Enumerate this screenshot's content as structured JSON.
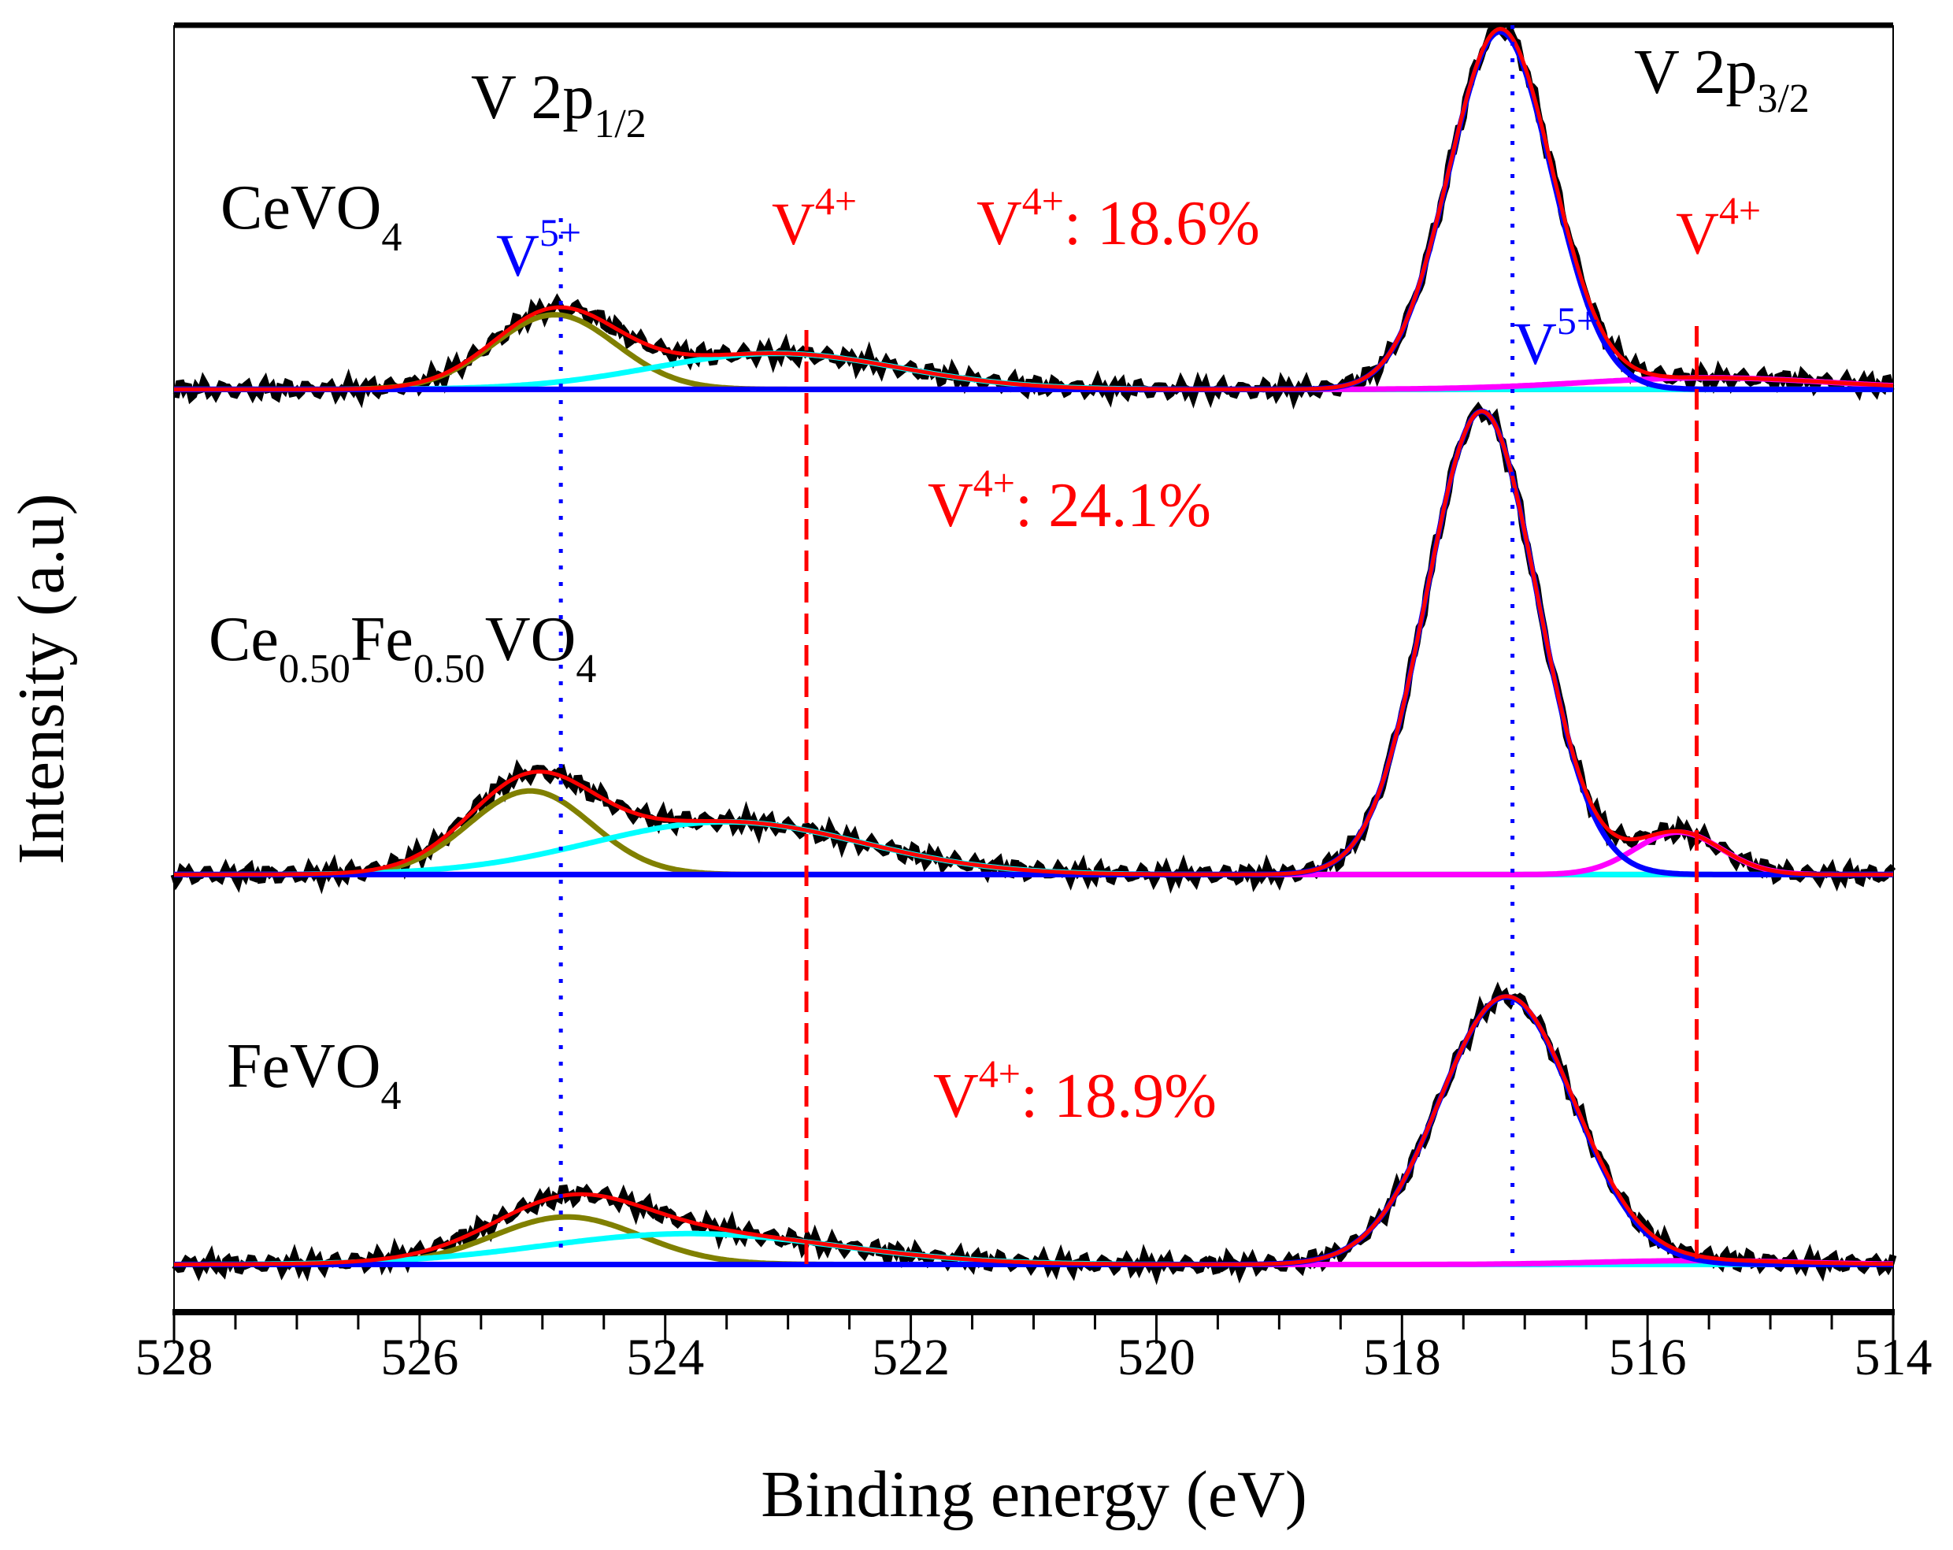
{
  "chart_data": {
    "type": "line",
    "title": "",
    "xlabel": "Binding energy (eV)",
    "ylabel": "Intensity (a.u)",
    "xlim": [
      528,
      514
    ],
    "x_ticks": [
      "528",
      "526",
      "524",
      "522",
      "520",
      "518",
      "516",
      "514"
    ],
    "x_tick_values": [
      528,
      526,
      524,
      522,
      520,
      518,
      516,
      514
    ],
    "ylim": [
      0,
      100
    ],
    "colors": {
      "raw": "#000000",
      "fit": "#ff0000",
      "v5_2p3": "#0000ff",
      "v4_2p3": "#ff00ff",
      "v5_2p1": "#808000",
      "v4_2p1": "#00ffff",
      "ref_v5": "#0000ff",
      "ref_v4": "#ff0000"
    },
    "peak_labels": {
      "v2p12": {
        "main": "V 2p",
        "sub": "1/2"
      },
      "v2p32": {
        "main": "V 2p",
        "sub": "3/2"
      }
    },
    "reference_lines": [
      {
        "name": "V5+ 2p1/2",
        "energy": 524.85,
        "style": "dotted",
        "color": "#0000ff"
      },
      {
        "name": "V4+ 2p1/2",
        "energy": 522.85,
        "style": "dashed",
        "color": "#ff0000"
      },
      {
        "name": "V5+ 2p3/2",
        "energy": 517.1,
        "style": "dotted",
        "color": "#0000ff"
      },
      {
        "name": "V4+ 2p3/2",
        "energy": 515.6,
        "style": "dashed",
        "color": "#ff0000"
      }
    ],
    "ion_labels": {
      "v5_left": {
        "main": "V",
        "sup": "5+"
      },
      "v4_left": {
        "main": "V",
        "sup": "4+"
      },
      "v5_right": {
        "main": "V",
        "sup": "5+"
      },
      "v4_right": {
        "main": "V",
        "sup": "4+"
      }
    },
    "series": [
      {
        "name": "CeVO4",
        "label": {
          "parts": [
            "CeVO",
            "4"
          ]
        },
        "v4_fraction_label": {
          "main": "V",
          "sup": "4+",
          "rest": ": 18.6%"
        },
        "v4_fraction": 18.6,
        "offset": 71.7,
        "components": [
          {
            "name": "V5+ 2p3/2",
            "center": 517.2,
            "amplitude": 27.8,
            "sigma": 0.42,
            "color": "#0000ff"
          },
          {
            "name": "V4+ 2p3/2",
            "center": 515.5,
            "amplitude": 0.9,
            "sigma": 1.0,
            "color": "#ff00ff"
          },
          {
            "name": "V5+ 2p1/2",
            "center": 524.9,
            "amplitude": 5.8,
            "sigma": 0.5,
            "color": "#808000"
          },
          {
            "name": "V4+ 2p1/2",
            "center": 523.1,
            "amplitude": 2.8,
            "sigma": 1.0,
            "color": "#00ffff"
          }
        ]
      },
      {
        "name": "Ce0.50Fe0.50VO4",
        "label": {
          "parts": [
            "Ce",
            "0.50",
            "Fe",
            "0.50",
            "VO",
            "4"
          ]
        },
        "v4_fraction_label": {
          "main": "V",
          "sup": "4+",
          "rest": ": 24.1%"
        },
        "v4_fraction": 24.1,
        "offset": 34.0,
        "components": [
          {
            "name": "V5+ 2p3/2",
            "center": 517.35,
            "amplitude": 36.0,
            "sigma": 0.45,
            "color": "#0000ff"
          },
          {
            "name": "V4+ 2p3/2",
            "center": 515.75,
            "amplitude": 3.3,
            "sigma": 0.35,
            "color": "#ff00ff"
          },
          {
            "name": "V5+ 2p1/2",
            "center": 525.1,
            "amplitude": 6.5,
            "sigma": 0.5,
            "color": "#808000"
          },
          {
            "name": "V4+ 2p1/2",
            "center": 523.5,
            "amplitude": 4.1,
            "sigma": 1.1,
            "color": "#00ffff"
          }
        ]
      },
      {
        "name": "FeVO4",
        "label": {
          "parts": [
            "FeVO",
            "4"
          ]
        },
        "v4_fraction_label": {
          "main": "V",
          "sup": "4+",
          "rest": ": 18.9%"
        },
        "v4_fraction": 18.9,
        "offset": 3.7,
        "components": [
          {
            "name": "V5+ 2p3/2",
            "center": 517.15,
            "amplitude": 20.8,
            "sigma": 0.55,
            "color": "#0000ff"
          },
          {
            "name": "V4+ 2p3/2",
            "center": 515.6,
            "amplitude": 0.3,
            "sigma": 0.8,
            "color": "#ff00ff"
          },
          {
            "name": "V5+ 2p1/2",
            "center": 524.8,
            "amplitude": 3.7,
            "sigma": 0.6,
            "color": "#808000"
          },
          {
            "name": "V4+ 2p1/2",
            "center": 523.8,
            "amplitude": 2.4,
            "sigma": 1.2,
            "color": "#00ffff"
          }
        ]
      }
    ]
  }
}
